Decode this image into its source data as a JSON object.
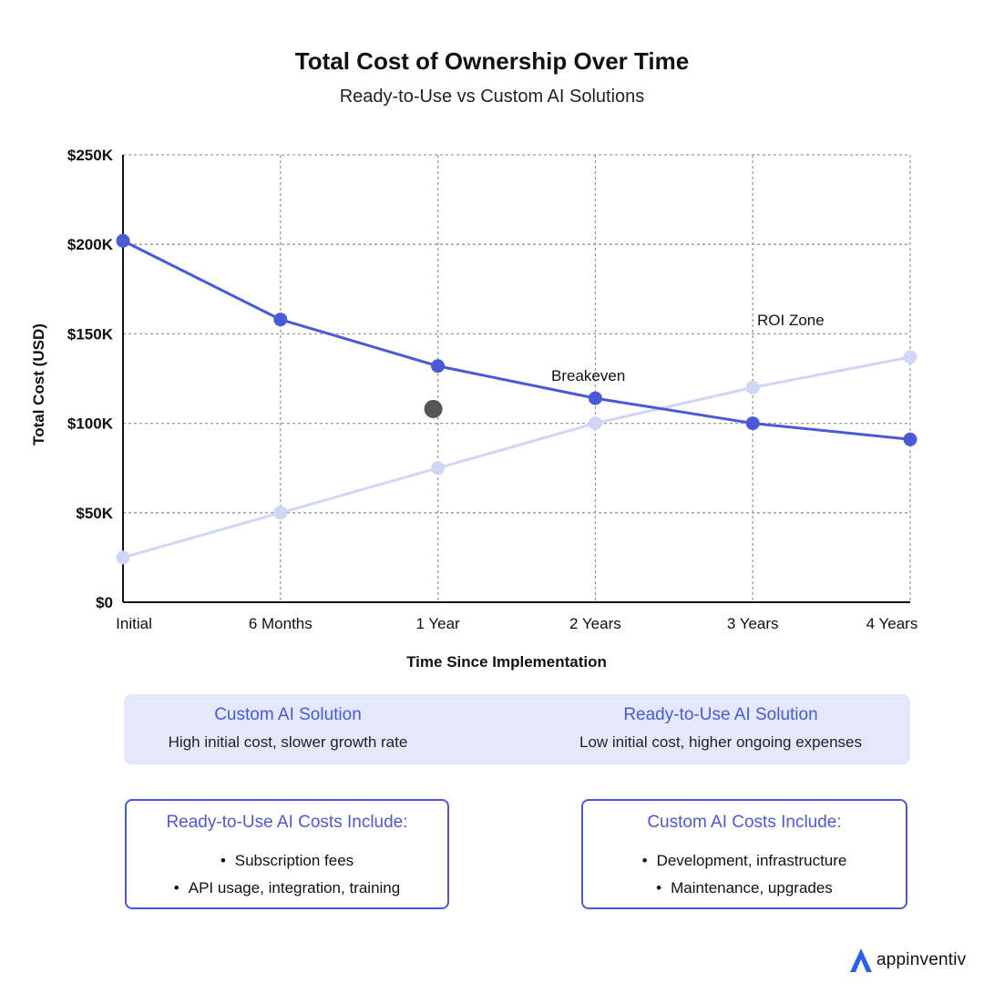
{
  "header": {
    "title": "Total Cost of Ownership Over Time",
    "subtitle": "Ready-to-Use vs Custom AI Solutions"
  },
  "chart_data": {
    "type": "line",
    "title": "Total Cost of Ownership Over Time",
    "subtitle": "Ready-to-Use vs Custom AI Solutions",
    "xlabel": "Time Since Implementation",
    "ylabel": "Total Cost (USD)",
    "categories": [
      "Initial",
      "6 Months",
      "1 Year",
      "2 Years",
      "3 Years",
      "4 Years"
    ],
    "ylim": [
      0,
      250000
    ],
    "yticks": [
      0,
      50000,
      100000,
      150000,
      200000,
      250000
    ],
    "ytick_labels": [
      "$0",
      "$50K",
      "$100K",
      "$150K",
      "$200K",
      "$250K"
    ],
    "grid": true,
    "series": [
      {
        "key": "custom",
        "color": "#4a5ad6",
        "values": [
          202000,
          158000,
          132000,
          114000,
          100000,
          91000
        ]
      },
      {
        "key": "ready",
        "color": "#cfd6f6",
        "values": [
          25000,
          50000,
          75000,
          100000,
          120000,
          137000
        ]
      }
    ],
    "annotations": [
      {
        "text": "Breakeven",
        "x": 2.0,
        "y": 108000,
        "color": "#555555"
      },
      {
        "text": "ROI Zone",
        "x": 3.2,
        "y": 152000
      }
    ]
  },
  "legend": {
    "custom": {
      "title": "Custom AI Solution",
      "desc": "High initial cost, slower growth rate"
    },
    "ready": {
      "title": "Ready-to-Use AI Solution",
      "desc": "Low initial cost, higher ongoing expenses"
    }
  },
  "ready_costs": {
    "title": "Ready-to-Use AI Costs Include:",
    "items": [
      "Subscription fees",
      "API usage, integration, training"
    ]
  },
  "custom_costs": {
    "title": "Custom AI Costs Include:",
    "items": [
      "Development, infrastructure",
      "Maintenance, upgrades"
    ]
  },
  "brand": {
    "name": "appinventiv",
    "color": "#2563eb",
    "icon": "appinventiv-logo-icon"
  }
}
